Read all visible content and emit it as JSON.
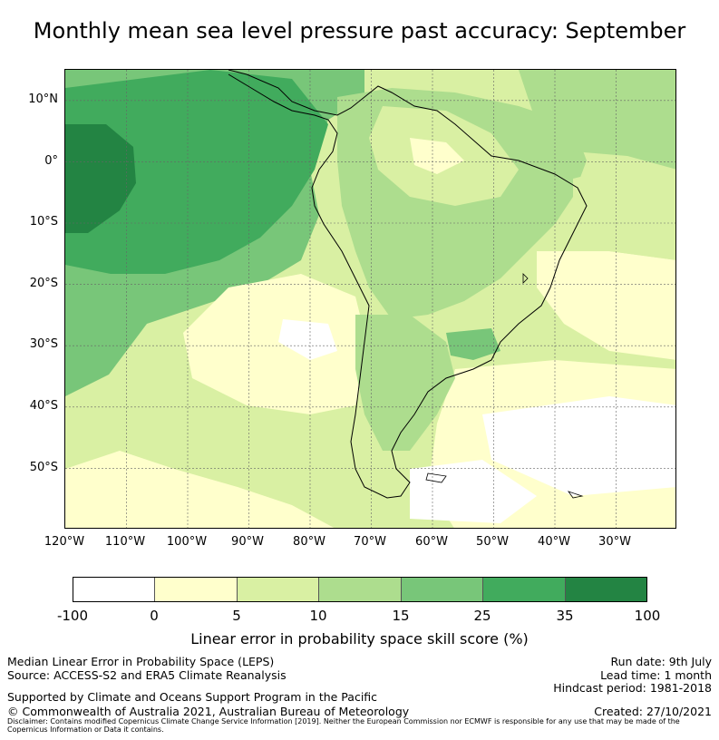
{
  "title": "Monthly mean sea level pressure past accuracy: September",
  "map": {
    "lat_labels": [
      "10°N",
      "0°",
      "10°S",
      "20°S",
      "30°S",
      "40°S",
      "50°S"
    ],
    "lon_labels": [
      "120°W",
      "110°W",
      "100°W",
      "90°W",
      "80°W",
      "70°W",
      "60°W",
      "50°W",
      "40°W",
      "30°W"
    ],
    "lat_range": [
      -60,
      15
    ],
    "lon_range": [
      -120,
      -20
    ],
    "gridlines": true
  },
  "colorbar": {
    "ticks": [
      "-100",
      "0",
      "5",
      "10",
      "15",
      "25",
      "35",
      "100"
    ],
    "colors": [
      "#ffffff",
      "#ffffcc",
      "#d9f0a3",
      "#addd8e",
      "#78c679",
      "#41ab5d",
      "#238443"
    ],
    "label": "Linear error in probability space skill score (%)"
  },
  "footer": {
    "left_line1": "Median Linear Error in Probability Space (LEPS)",
    "left_line2": "Source: ACCESS-S2 and ERA5 Climate Reanalysis",
    "left_line3": "Supported by Climate and Oceans Support Program in the Pacific",
    "left_line4": "© Commonwealth of Australia 2021, Australian Bureau of Meteorology",
    "run_date": "Run date: 9th July",
    "lead_time": "Lead time: 1 month",
    "hindcast": "Hindcast period: 1981-2018",
    "created": "Created: 27/10/2021",
    "disclaimer": "Disclaimer: Contains modified Copernicus Climate Change Service Information [2019]. Neither the European Commission nor ECMWF is responsible for any use that may be made of the Copernicus Information or Data it contains."
  }
}
